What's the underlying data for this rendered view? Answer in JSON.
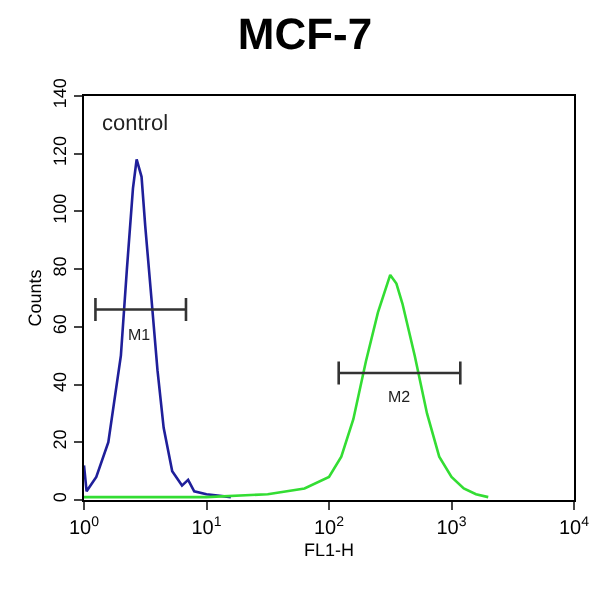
{
  "chart_data": {
    "type": "line",
    "title": "MCF-7",
    "xlabel": "FL1-H",
    "ylabel": "Counts",
    "log": "x",
    "grid": false,
    "marker": "none",
    "line_style": "solid",
    "xlim": [
      1,
      10000
    ],
    "xticks": [
      {
        "value": 1,
        "label": "10$^{0}$"
      },
      {
        "value": 10,
        "label": "10$^{1}$"
      },
      {
        "value": 100,
        "label": "10$^{2}$"
      },
      {
        "value": 1000,
        "label": "10$^{3}$"
      },
      {
        "value": 10000,
        "label": "10$^{4}$"
      }
    ],
    "ylim": [
      0,
      140
    ],
    "yticks": [
      0,
      20,
      40,
      60,
      80,
      100,
      120,
      140
    ],
    "annotations": [
      "control"
    ],
    "series": [
      {
        "color": "#1f1f9a",
        "x": [
          1,
          1.05,
          1.26,
          1.58,
          2,
          2.24,
          2.51,
          2.69,
          2.95,
          3.16,
          3.55,
          3.98,
          4.47,
          5.25,
          6.31,
          7.08,
          7.94,
          10,
          15.8
        ],
        "values": [
          12,
          3,
          8,
          20,
          50,
          80,
          108,
          118,
          112,
          95,
          70,
          45,
          25,
          10,
          5,
          7,
          3,
          2,
          1
        ]
      },
      {
        "color": "#33dd33",
        "x": [
          1,
          10,
          31.6,
          63.1,
          100,
          126,
          158,
          200,
          251,
          316,
          355,
          398,
          501,
          631,
          794,
          1000,
          1259,
          1585,
          1995
        ],
        "values": [
          1,
          1,
          2,
          4,
          8,
          15,
          28,
          48,
          65,
          78,
          75,
          68,
          50,
          30,
          15,
          8,
          4,
          2,
          1
        ]
      },
      {
        "name": "M1",
        "color": "#333333",
        "x": [
          1.24,
          1.24,
          1.24,
          6.8,
          6.8,
          6.8
        ],
        "values": [
          62,
          70,
          66,
          66,
          70,
          62
        ]
      },
      {
        "name": "M2",
        "color": "#333333",
        "x": [
          120,
          120,
          120,
          1180,
          1180,
          1180
        ],
        "values": [
          40,
          48,
          44,
          44,
          48,
          40
        ]
      }
    ]
  }
}
